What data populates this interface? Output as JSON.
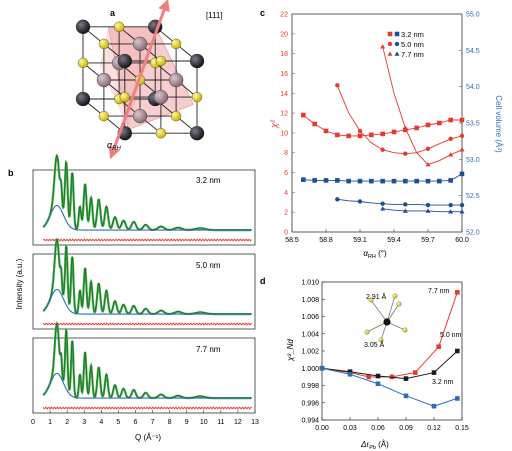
{
  "panels": {
    "a": {
      "label": "a",
      "direction_label": "[111]",
      "axis_symbol": "α",
      "axis_subscript": "RH"
    },
    "b": {
      "label": "b",
      "ylabel": "Intensity (a.u.)",
      "xlabel": "Q (Å⁻¹)",
      "subpanel_labels": [
        "3.2 nm",
        "5.0 nm",
        "7.7 nm"
      ]
    },
    "c": {
      "label": "c",
      "ylabel_left": "χ²",
      "ylabel_right": "Cell volume (Å³)",
      "xlabel_symbol": "α",
      "xlabel_subscript": "RH",
      "xlabel_unit": "(°)",
      "legend": [
        "3.2 nm",
        "5.0 nm",
        "7.7 nm"
      ]
    },
    "d": {
      "label": "d",
      "ylabel": "χ²_Nd",
      "xlabel_symbol": "Δr",
      "xlabel_subscript": "Pb",
      "xlabel_unit": "(Å)",
      "inset_labels": [
        "2.91 Å",
        "3.05 Å"
      ],
      "series_labels": [
        "7.7 nm",
        "5.0 nm",
        "3.2 nm"
      ]
    }
  },
  "colors": {
    "red": "#e8392f",
    "blue": "#2e6db4",
    "navy": "#1f4e9a",
    "black": "#1a1a1a",
    "green": "#3aa843",
    "dark_green": "#1b5e20",
    "pink": "#f1a6a6",
    "yellow": "#e7d84a",
    "dark_atom": "#2b2b34"
  },
  "chart_data": [
    {
      "panel": "b",
      "type": "line",
      "xlim": [
        0,
        13
      ],
      "xticks": [
        0,
        1,
        2,
        3,
        4,
        5,
        6,
        7,
        8,
        9,
        10,
        11,
        12,
        13
      ],
      "series_names": [
        "observed",
        "calculated",
        "background",
        "difference"
      ],
      "peaks": [
        [
          1.4,
          0.85,
          0.2
        ],
        [
          1.65,
          0.3,
          0.07
        ],
        [
          1.95,
          1.0,
          0.11
        ],
        [
          2.3,
          0.95,
          0.11
        ],
        [
          2.75,
          0.4,
          0.1
        ],
        [
          3.05,
          0.78,
          0.12
        ],
        [
          3.4,
          0.55,
          0.12
        ],
        [
          3.85,
          0.52,
          0.14
        ],
        [
          4.3,
          0.4,
          0.14
        ],
        [
          4.8,
          0.22,
          0.16
        ],
        [
          5.3,
          0.16,
          0.17
        ],
        [
          5.9,
          0.14,
          0.18
        ],
        [
          6.6,
          0.09,
          0.2
        ],
        [
          7.5,
          0.06,
          0.25
        ],
        [
          8.5,
          0.04,
          0.3
        ],
        [
          9.8,
          0.03,
          0.4
        ]
      ],
      "background": {
        "start": 0.18,
        "peak_q": 1.4,
        "peak": 0.42,
        "tail": 0.05
      }
    },
    {
      "panel": "c",
      "type": "line",
      "xlim": [
        58.5,
        60.0
      ],
      "xticks": [
        58.5,
        58.8,
        59.1,
        59.4,
        59.7,
        60.0
      ],
      "ylim_left": [
        0,
        22
      ],
      "yticks_left": [
        0,
        2,
        4,
        6,
        8,
        10,
        12,
        14,
        16,
        18,
        20,
        22
      ],
      "ylim_right": [
        52.0,
        55.0
      ],
      "yticks_right": [
        52.0,
        52.5,
        53.0,
        53.5,
        54.0,
        54.5,
        55.0
      ],
      "series": [
        {
          "name": "3.2 nm",
          "axis": "left",
          "marker": "square",
          "color": "red",
          "x": [
            58.6,
            58.7,
            58.8,
            58.9,
            59.0,
            59.1,
            59.2,
            59.3,
            59.4,
            59.5,
            59.6,
            59.7,
            59.8,
            59.9,
            60.0
          ],
          "y": [
            11.8,
            10.9,
            10.2,
            9.8,
            9.7,
            9.7,
            9.8,
            9.9,
            10.1,
            10.3,
            10.5,
            10.8,
            11.0,
            11.3,
            11.3
          ]
        },
        {
          "name": "5.0 nm",
          "axis": "left",
          "marker": "circle",
          "color": "red",
          "x": [
            58.9,
            59.0,
            59.1,
            59.2,
            59.3,
            59.4,
            59.5,
            59.6,
            59.7,
            59.8,
            59.9,
            60.0
          ],
          "y": [
            14.8,
            12.0,
            10.2,
            9.0,
            8.3,
            8.0,
            7.9,
            8.0,
            8.4,
            8.9,
            9.4,
            9.7
          ]
        },
        {
          "name": "7.7 nm",
          "axis": "left",
          "marker": "triangle",
          "color": "red",
          "x": [
            59.3,
            59.4,
            59.5,
            59.6,
            59.7,
            59.8,
            59.9,
            60.0
          ],
          "y": [
            18.7,
            14.0,
            10.5,
            8.0,
            6.8,
            7.2,
            7.8,
            8.3
          ]
        },
        {
          "name": "3.2 nm",
          "axis": "right",
          "marker": "square",
          "color": "navy",
          "x": [
            58.6,
            58.7,
            58.8,
            58.9,
            59.0,
            59.1,
            59.2,
            59.3,
            59.4,
            59.5,
            59.6,
            59.7,
            59.8,
            59.9,
            60.0
          ],
          "y": [
            52.72,
            52.71,
            52.71,
            52.71,
            52.7,
            52.7,
            52.7,
            52.7,
            52.7,
            52.7,
            52.7,
            52.7,
            52.7,
            52.71,
            52.8
          ]
        },
        {
          "name": "5.0 nm",
          "axis": "right",
          "marker": "circle",
          "color": "navy",
          "x": [
            58.9,
            59.0,
            59.1,
            59.2,
            59.3,
            59.4,
            59.5,
            59.6,
            59.7,
            59.8,
            59.9,
            60.0
          ],
          "y": [
            52.45,
            52.43,
            52.42,
            52.4,
            52.39,
            52.38,
            52.38,
            52.38,
            52.37,
            52.37,
            52.37,
            52.37
          ]
        },
        {
          "name": "7.7 nm",
          "axis": "right",
          "marker": "triangle",
          "color": "navy",
          "x": [
            59.3,
            59.4,
            59.5,
            59.6,
            59.7,
            59.8,
            59.9,
            60.0
          ],
          "y": [
            52.32,
            52.3,
            52.29,
            52.29,
            52.29,
            52.28,
            52.28,
            52.28
          ]
        }
      ]
    },
    {
      "panel": "d",
      "type": "line",
      "xlim": [
        0.0,
        0.15
      ],
      "xticks": [
        0.0,
        0.03,
        0.06,
        0.09,
        0.12,
        0.15
      ],
      "xtick_labels": [
        "0.00",
        "0.03",
        "0.06",
        "0.09",
        "0.12",
        "0.15"
      ],
      "ylim": [
        0.994,
        1.01
      ],
      "yticks": [
        0.994,
        0.996,
        0.998,
        1.0,
        1.002,
        1.004,
        1.006,
        1.008,
        1.01
      ],
      "series": [
        {
          "name": "7.7 nm",
          "color": "red",
          "marker": "square",
          "x": [
            0.0,
            0.03,
            0.05,
            0.075,
            0.1,
            0.125,
            0.145
          ],
          "y": [
            1.0,
            0.9995,
            0.999,
            0.999,
            0.9995,
            1.0025,
            1.0088
          ]
        },
        {
          "name": "5.0 nm",
          "color": "black",
          "marker": "square",
          "x": [
            0.0,
            0.03,
            0.06,
            0.09,
            0.12,
            0.145
          ],
          "y": [
            1.0,
            0.9996,
            0.9991,
            0.9988,
            0.9995,
            1.002
          ]
        },
        {
          "name": "3.2 nm",
          "color": "blue",
          "marker": "square",
          "x": [
            0.0,
            0.03,
            0.06,
            0.09,
            0.12,
            0.145
          ],
          "y": [
            1.0,
            0.9993,
            0.9982,
            0.9968,
            0.9956,
            0.9965
          ]
        }
      ]
    }
  ]
}
